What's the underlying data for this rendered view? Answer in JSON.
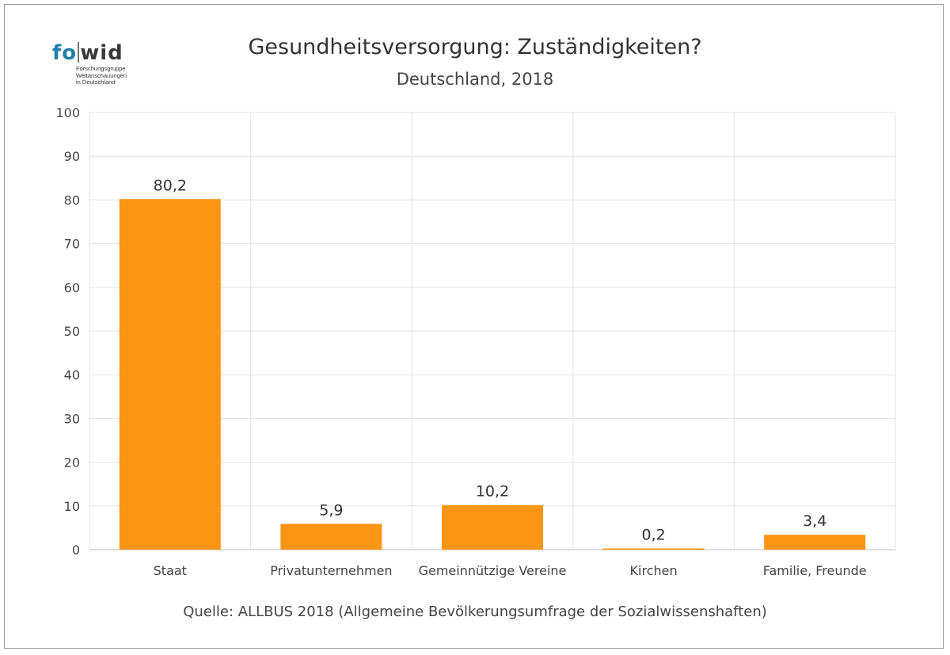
{
  "logo": {
    "mark_fo": "fo",
    "mark_wid": "wid",
    "line1": "Forschungsgruppe",
    "line2": "Weltanschauungen",
    "line3": "in Deutschland"
  },
  "source": "Quelle: ALLBUS 2018 (Allgemeine Bevölkerungsumfrage der Sozialwissenshaften)",
  "colors": {
    "bar": "#fb9513",
    "grid": "#e3e3e3",
    "axis": "#bdbdbd"
  },
  "chart_data": {
    "type": "bar",
    "title": "Gesundheitsversorgung: Zuständigkeiten?",
    "subtitle": "Deutschland, 2018",
    "xlabel": "",
    "ylabel": "",
    "categories": [
      "Staat",
      "Privatunternehmen",
      "Gemeinnützige Vereine",
      "Kirchen",
      "Familie, Freunde"
    ],
    "values": [
      80.2,
      5.9,
      10.2,
      0.2,
      3.4
    ],
    "value_labels": [
      "80,2",
      "5,9",
      "10,2",
      "0,2",
      "3,4"
    ],
    "ylim": [
      0,
      100
    ],
    "yticks": [
      0,
      10,
      20,
      30,
      40,
      50,
      60,
      70,
      80,
      90,
      100
    ],
    "grid": true,
    "legend": "none"
  }
}
